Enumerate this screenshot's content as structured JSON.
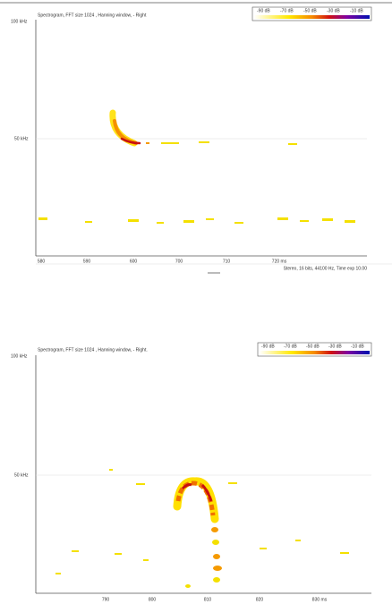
{
  "panels": [
    {
      "title": "Spectrogram, FFT size 1024 , Hanning window, - Right",
      "legend": [
        "-90 dB",
        "-70 dB",
        "-50 dB",
        "-30 dB",
        "-10 dB"
      ],
      "y_labels": [
        "100 kHz",
        "50 kHz"
      ],
      "x_labels": [
        "580",
        "590",
        "600",
        "700",
        "710",
        "720 ms"
      ],
      "status": "Stereo, 16 bits, 44100 Hz, Time exp 10.00"
    },
    {
      "title": "Spectrogram, FFT size 1024 , Hanning window, - Right.",
      "legend": [
        "-90 dB",
        "-70 dB",
        "-50 dB",
        "-30 dB",
        "-10 dB"
      ],
      "y_labels": [
        "100 kHz",
        "50 kHz"
      ],
      "x_labels": [
        "790",
        "800",
        "810",
        "820",
        "830 ms"
      ]
    }
  ]
}
